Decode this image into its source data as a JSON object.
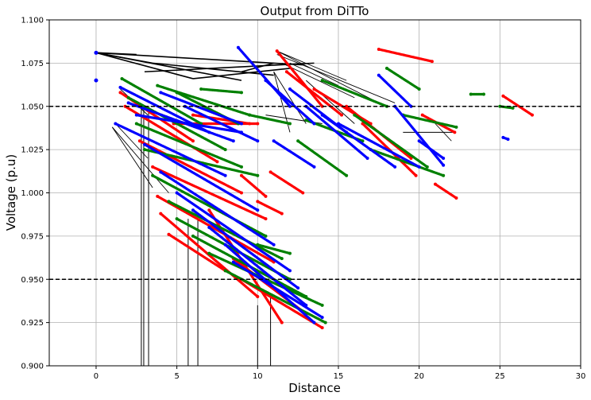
{
  "chart_data": {
    "type": "scatter",
    "title": "Output from DiTTo",
    "xlabel": "Distance",
    "ylabel": "Voltage (p.u)",
    "xlim": [
      -2.9,
      30
    ],
    "ylim": [
      0.9,
      1.1
    ],
    "xticks": [
      "0",
      "5",
      "10",
      "15",
      "20",
      "25",
      "30"
    ],
    "yticks": [
      "0.900",
      "0.925",
      "0.950",
      "0.975",
      "1.000",
      "1.025",
      "1.050",
      "1.075",
      "1.100"
    ],
    "grid": true,
    "reference_lines": [
      {
        "y": 1.05,
        "style": "dashed",
        "color": "#000000"
      },
      {
        "y": 0.95,
        "style": "dashed",
        "color": "#000000"
      }
    ],
    "connector_color": "#000000",
    "series": [
      {
        "color": "#ff0000",
        "segments": [
          [
            [
              1.5,
              1.058
            ],
            [
              6.0,
              1.03
            ]
          ],
          [
            [
              1.8,
              1.05
            ],
            [
              7.5,
              1.018
            ]
          ],
          [
            [
              2.7,
              1.03
            ],
            [
              9.0,
              1.0
            ]
          ],
          [
            [
              3.5,
              1.015
            ],
            [
              10.5,
              0.985
            ]
          ],
          [
            [
              3.8,
              0.998
            ],
            [
              11.0,
              0.96
            ]
          ],
          [
            [
              4.0,
              0.988
            ],
            [
              10.0,
              0.94
            ]
          ],
          [
            [
              4.5,
              0.976
            ],
            [
              8.0,
              0.955
            ]
          ],
          [
            [
              7.0,
              0.99
            ],
            [
              11.5,
              0.925
            ]
          ],
          [
            [
              8.5,
              0.962
            ],
            [
              13.0,
              0.93
            ]
          ],
          [
            [
              9.0,
              0.95
            ],
            [
              14.0,
              0.922
            ]
          ],
          [
            [
              4.8,
              1.04
            ],
            [
              10.0,
              1.04
            ]
          ],
          [
            [
              6.0,
              1.045
            ],
            [
              9.5,
              1.04
            ]
          ],
          [
            [
              10.8,
              1.012
            ],
            [
              12.8,
              1.0
            ]
          ],
          [
            [
              11.2,
              1.082
            ],
            [
              14.0,
              1.05
            ]
          ],
          [
            [
              11.8,
              1.07
            ],
            [
              15.2,
              1.045
            ]
          ],
          [
            [
              13.5,
              1.06
            ],
            [
              17.0,
              1.04
            ]
          ],
          [
            [
              15.5,
              1.05
            ],
            [
              19.5,
              1.02
            ]
          ],
          [
            [
              16.5,
              1.04
            ],
            [
              19.8,
              1.01
            ]
          ],
          [
            [
              17.5,
              1.083
            ],
            [
              20.8,
              1.076
            ]
          ],
          [
            [
              20.2,
              1.045
            ],
            [
              22.2,
              1.035
            ]
          ],
          [
            [
              21.0,
              1.005
            ],
            [
              22.3,
              0.997
            ]
          ],
          [
            [
              25.2,
              1.056
            ],
            [
              27.0,
              1.045
            ]
          ],
          [
            [
              10.0,
              0.995
            ],
            [
              11.5,
              0.988
            ]
          ],
          [
            [
              9.0,
              1.01
            ],
            [
              10.5,
              0.998
            ]
          ]
        ]
      },
      {
        "color": "#008000",
        "segments": [
          [
            [
              1.6,
              1.066
            ],
            [
              6.5,
              1.04
            ]
          ],
          [
            [
              2.0,
              1.055
            ],
            [
              8.0,
              1.025
            ]
          ],
          [
            [
              2.5,
              1.04
            ],
            [
              9.0,
              1.015
            ]
          ],
          [
            [
              3.0,
              1.025
            ],
            [
              10.0,
              1.01
            ]
          ],
          [
            [
              3.5,
              1.01
            ],
            [
              10.5,
              0.975
            ]
          ],
          [
            [
              4.5,
              0.995
            ],
            [
              11.5,
              0.962
            ]
          ],
          [
            [
              5.0,
              0.985
            ],
            [
              12.0,
              0.95
            ]
          ],
          [
            [
              6.0,
              0.975
            ],
            [
              13.0,
              0.94
            ]
          ],
          [
            [
              7.0,
              0.965
            ],
            [
              14.0,
              0.935
            ]
          ],
          [
            [
              8.0,
              0.955
            ],
            [
              14.2,
              0.925
            ]
          ],
          [
            [
              3.8,
              1.062
            ],
            [
              9.5,
              1.045
            ]
          ],
          [
            [
              5.0,
              1.058
            ],
            [
              8.8,
              1.04
            ]
          ],
          [
            [
              6.5,
              1.06
            ],
            [
              9.0,
              1.058
            ]
          ],
          [
            [
              9.5,
              1.045
            ],
            [
              12.0,
              1.04
            ]
          ],
          [
            [
              12.5,
              1.03
            ],
            [
              15.5,
              1.01
            ]
          ],
          [
            [
              13.0,
              1.042
            ],
            [
              16.5,
              1.03
            ]
          ],
          [
            [
              14.0,
              1.065
            ],
            [
              18.0,
              1.05
            ]
          ],
          [
            [
              16.0,
              1.045
            ],
            [
              20.5,
              1.015
            ]
          ],
          [
            [
              17.0,
              1.025
            ],
            [
              21.5,
              1.01
            ]
          ],
          [
            [
              18.0,
              1.072
            ],
            [
              20.0,
              1.06
            ]
          ],
          [
            [
              19.0,
              1.045
            ],
            [
              22.3,
              1.038
            ]
          ],
          [
            [
              23.2,
              1.057
            ],
            [
              24.0,
              1.057
            ]
          ],
          [
            [
              25.0,
              1.05
            ],
            [
              25.8,
              1.049
            ]
          ],
          [
            [
              10.0,
              0.97
            ],
            [
              12.0,
              0.965
            ]
          ]
        ]
      },
      {
        "color": "#0000ff",
        "segments": [
          [
            [
              1.5,
              1.061
            ],
            [
              7.0,
              1.035
            ]
          ],
          [
            [
              2.0,
              1.052
            ],
            [
              8.5,
              1.03
            ]
          ],
          [
            [
              2.5,
              1.045
            ],
            [
              9.0,
              1.035
            ]
          ],
          [
            [
              1.2,
              1.04
            ],
            [
              8.0,
              1.01
            ]
          ],
          [
            [
              3.0,
              1.028
            ],
            [
              10.0,
              0.99
            ]
          ],
          [
            [
              4.0,
              1.012
            ],
            [
              11.0,
              0.97
            ]
          ],
          [
            [
              5.0,
              1.0
            ],
            [
              12.0,
              0.955
            ]
          ],
          [
            [
              6.0,
              0.99
            ],
            [
              12.5,
              0.945
            ]
          ],
          [
            [
              7.0,
              0.98
            ],
            [
              13.0,
              0.935
            ]
          ],
          [
            [
              8.0,
              0.97
            ],
            [
              13.5,
              0.925
            ]
          ],
          [
            [
              8.5,
              0.96
            ],
            [
              14.0,
              0.928
            ]
          ],
          [
            [
              4.0,
              1.058
            ],
            [
              9.0,
              1.04
            ]
          ],
          [
            [
              5.5,
              1.05
            ],
            [
              10.0,
              1.03
            ]
          ],
          [
            [
              8.8,
              1.084
            ],
            [
              12.0,
              1.05
            ]
          ],
          [
            [
              10.5,
              1.065
            ],
            [
              13.5,
              1.04
            ]
          ],
          [
            [
              12.0,
              1.06
            ],
            [
              15.5,
              1.035
            ]
          ],
          [
            [
              13.0,
              1.05
            ],
            [
              16.8,
              1.02
            ]
          ],
          [
            [
              14.0,
              1.045
            ],
            [
              18.5,
              1.015
            ]
          ],
          [
            [
              15.0,
              1.04
            ],
            [
              20.0,
              1.015
            ]
          ],
          [
            [
              17.5,
              1.068
            ],
            [
              19.5,
              1.05
            ]
          ],
          [
            [
              18.5,
              1.05
            ],
            [
              21.5,
              1.016
            ]
          ],
          [
            [
              20.0,
              1.03
            ],
            [
              21.5,
              1.02
            ]
          ],
          [
            [
              25.2,
              1.032
            ],
            [
              25.5,
              1.031
            ]
          ],
          [
            [
              11.0,
              1.03
            ],
            [
              13.5,
              1.015
            ]
          ]
        ]
      }
    ]
  }
}
